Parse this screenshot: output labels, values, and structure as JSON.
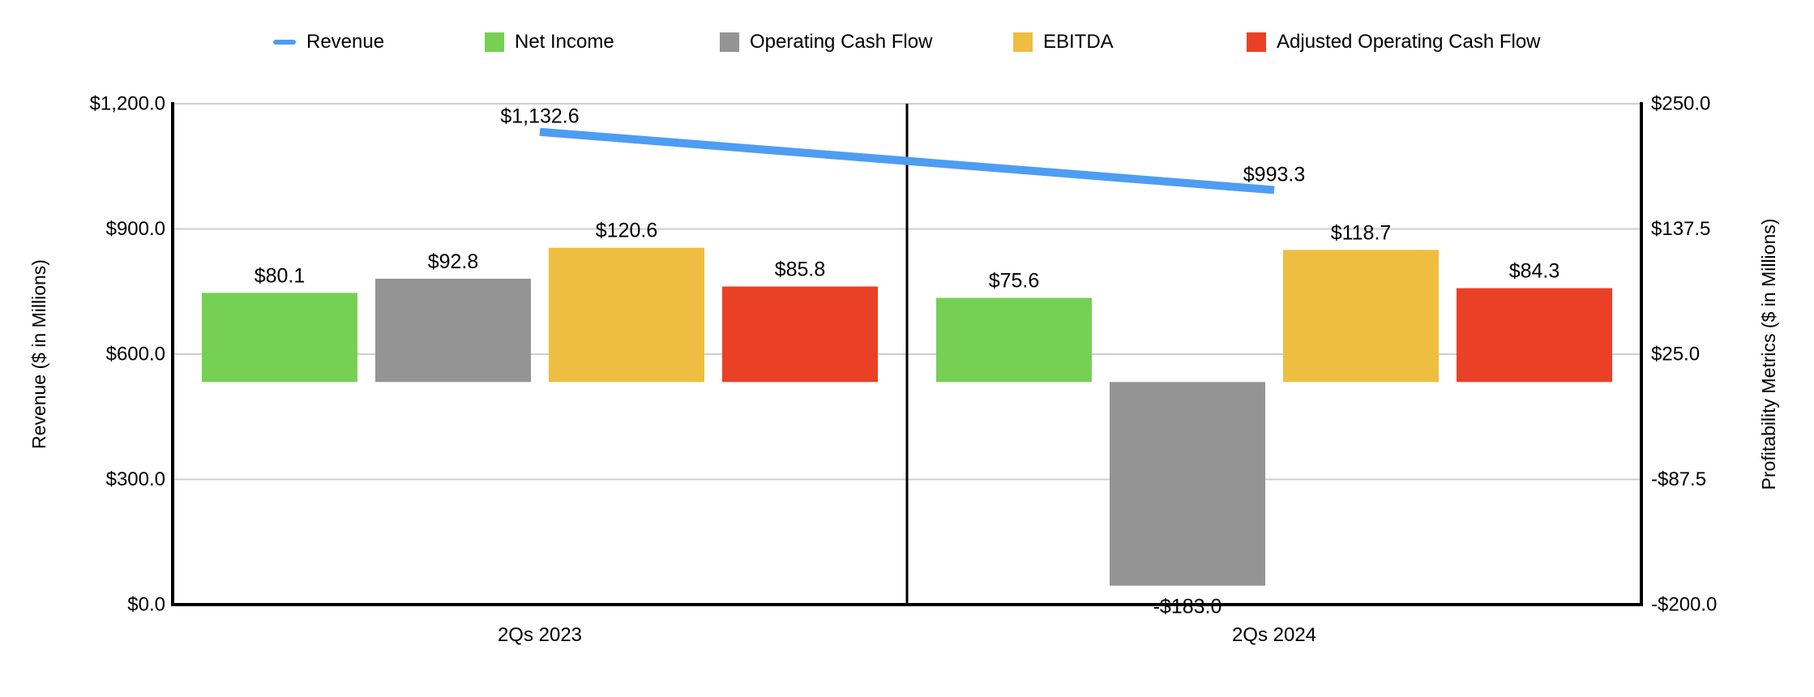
{
  "legend": {
    "items": [
      {
        "label": "Revenue",
        "type": "line",
        "color": "#4d9df3"
      },
      {
        "label": "Net Income",
        "type": "square",
        "color": "#76d053"
      },
      {
        "label": "Operating Cash Flow",
        "type": "square",
        "color": "#949494"
      },
      {
        "label": "EBITDA",
        "type": "square",
        "color": "#edbe3f"
      },
      {
        "label": "Adjusted Operating Cash Flow",
        "type": "square",
        "color": "#ea4026"
      }
    ]
  },
  "chart_data": {
    "type": "combo-bar-line",
    "categories": [
      "2Qs 2023",
      "2Qs 2024"
    ],
    "line_series": {
      "name": "Revenue",
      "axis": "left",
      "color": "#4d9df3",
      "values": [
        1132.6,
        993.3
      ],
      "labels": [
        "$1,132.6",
        "$993.3"
      ]
    },
    "bar_series": [
      {
        "name": "Net Income",
        "color": "#76d053",
        "values": [
          80.1,
          75.6
        ],
        "labels": [
          "$80.1",
          "$75.6"
        ]
      },
      {
        "name": "Operating Cash Flow",
        "color": "#949494",
        "values": [
          92.8,
          -183.0
        ],
        "labels": [
          "$92.8",
          "-$183.0"
        ]
      },
      {
        "name": "EBITDA",
        "color": "#edbe3f",
        "values": [
          120.6,
          118.7
        ],
        "labels": [
          "$120.6",
          "$118.7"
        ]
      },
      {
        "name": "Adjusted Operating Cash Flow",
        "color": "#ea4026",
        "values": [
          85.8,
          84.3
        ],
        "labels": [
          "$85.8",
          "$84.3"
        ]
      }
    ],
    "left_axis": {
      "title": "Revenue ($ in Millions)",
      "min": 0,
      "max": 1200,
      "ticks": [
        {
          "value": 0,
          "label": "$0.0"
        },
        {
          "value": 300,
          "label": "$300.0"
        },
        {
          "value": 600,
          "label": "$600.0"
        },
        {
          "value": 900,
          "label": "$900.0"
        },
        {
          "value": 1200,
          "label": "$1,200.0"
        }
      ]
    },
    "right_axis": {
      "title": "Profitability Metrics ($ in Millions)",
      "min": -200,
      "max": 250,
      "ticks": [
        {
          "value": -200,
          "label": "-$200.0"
        },
        {
          "value": -87.5,
          "label": "-$87.5"
        },
        {
          "value": 25,
          "label": "$25.0"
        },
        {
          "value": 137.5,
          "label": "$137.5"
        },
        {
          "value": 250,
          "label": "$250.0"
        }
      ]
    },
    "grid": true,
    "legend_position": "top",
    "colors": {
      "gridline": "#cfcfcf",
      "axis": "#000000",
      "text": "#000000",
      "background": "#ffffff"
    }
  }
}
